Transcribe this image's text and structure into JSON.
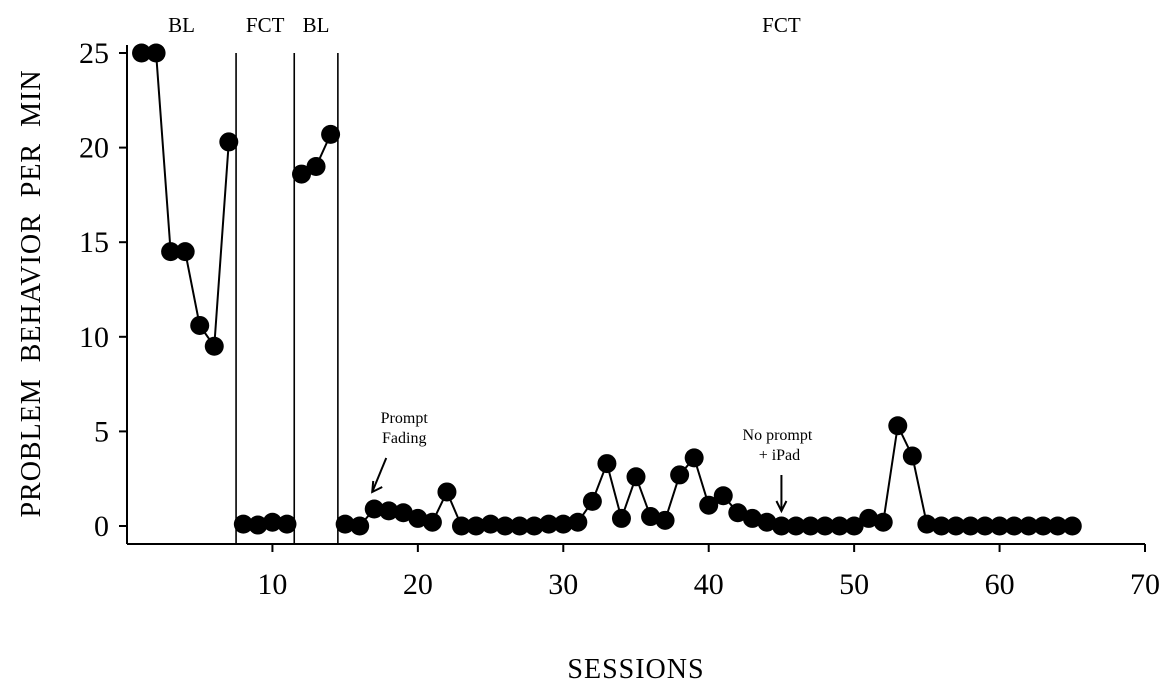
{
  "chart_data": {
    "type": "scatter",
    "xlabel": "SESSIONS",
    "ylabel": "PROBLEM  BEHAVIOR  PER  MIN",
    "xlim": [
      0,
      70
    ],
    "ylim": [
      0,
      25
    ],
    "xticks": [
      10,
      20,
      30,
      40,
      50,
      60,
      70
    ],
    "yticks": [
      0,
      5,
      10,
      15,
      20,
      25
    ],
    "grid": false,
    "phase_change_lines": [
      7.5,
      11.5,
      14.5
    ],
    "phase_labels": [
      "BL",
      "FCT",
      "BL",
      "FCT"
    ],
    "series": [
      {
        "phases": [
          {
            "x": [
              1,
              2,
              3,
              4,
              5,
              6,
              7
            ],
            "y": [
              25,
              25,
              14.5,
              14.5,
              10.6,
              9.5,
              20.3
            ]
          },
          {
            "x": [
              8,
              9,
              10,
              11
            ],
            "y": [
              0.1,
              0.05,
              0.2,
              0.1
            ]
          },
          {
            "x": [
              12,
              13,
              14
            ],
            "y": [
              18.6,
              19.0,
              20.7
            ]
          },
          {
            "x": [
              15,
              16,
              17,
              18,
              19,
              20,
              21,
              22,
              23,
              24,
              25,
              26,
              27,
              28,
              29,
              30,
              31,
              32,
              33,
              34,
              35,
              36,
              37,
              38,
              39,
              40,
              41,
              42,
              43,
              44,
              45,
              46,
              47,
              48,
              49,
              50,
              51,
              52,
              53,
              54,
              55,
              56,
              57,
              58,
              59,
              60,
              61,
              62,
              63,
              64,
              65
            ],
            "y": [
              0.1,
              0,
              0.9,
              0.8,
              0.7,
              0.4,
              0.2,
              1.8,
              0,
              0,
              0.1,
              0,
              0,
              0,
              0.1,
              0.1,
              0.2,
              1.3,
              3.3,
              0.4,
              2.6,
              0.5,
              0.3,
              2.7,
              3.6,
              1.1,
              1.6,
              0.7,
              0.4,
              0.2,
              0,
              0,
              0,
              0,
              0,
              0,
              0.4,
              0.2,
              5.3,
              3.7,
              0.1,
              0,
              0,
              0,
              0,
              0,
              0,
              0,
              0,
              0,
              0
            ]
          }
        ]
      }
    ],
    "annotations": [
      {
        "lines": [
          "Prompt",
          "Fading"
        ],
        "x": 17
      },
      {
        "lines": [
          "No prompt",
          "+ iPad"
        ],
        "x": 45
      }
    ]
  }
}
